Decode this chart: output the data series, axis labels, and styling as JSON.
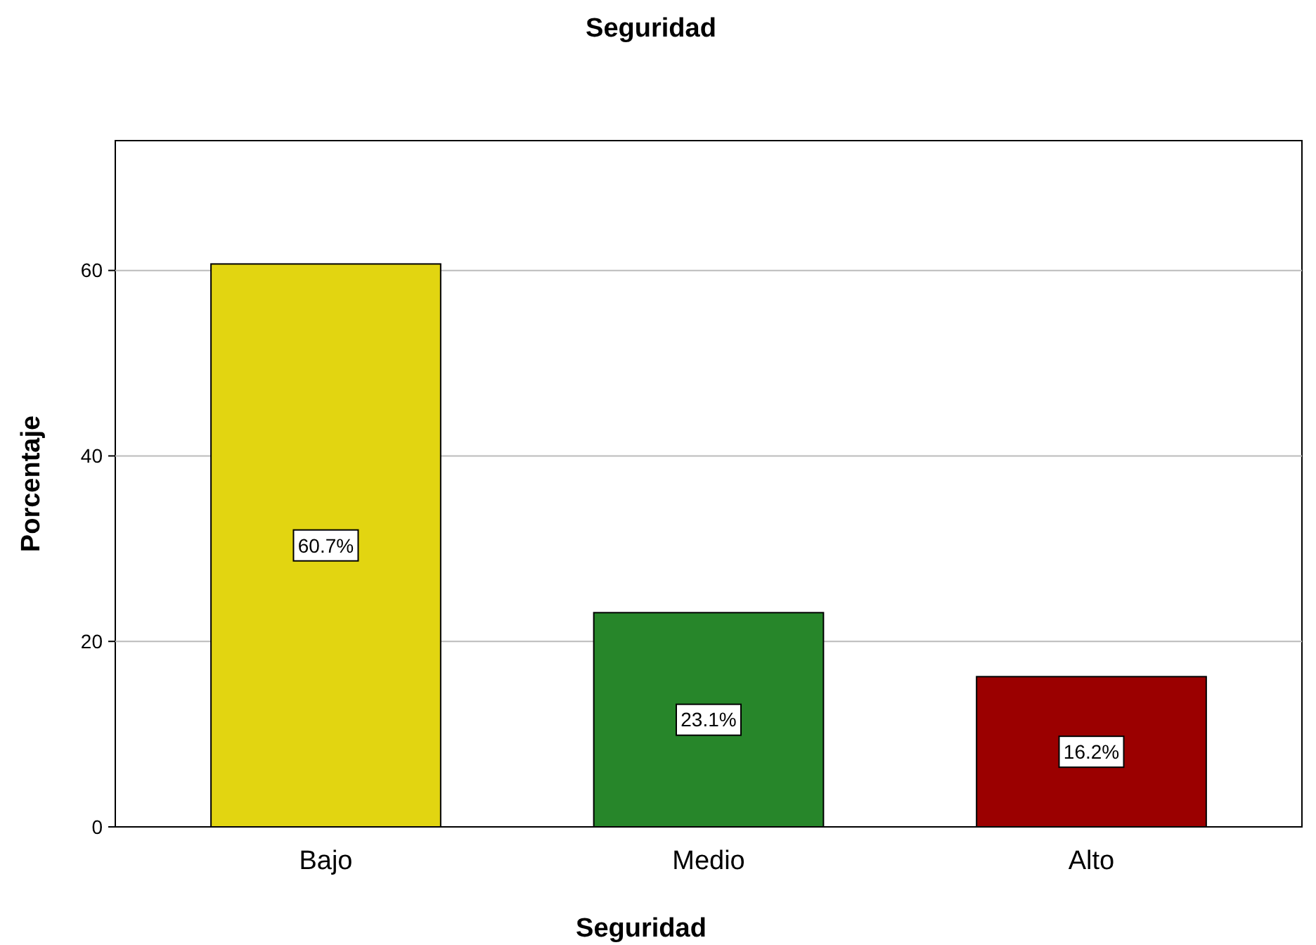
{
  "chart_data": {
    "type": "bar",
    "title": "Seguridad",
    "xlabel": "Seguridad",
    "ylabel": "Porcentaje",
    "categories": [
      "Bajo",
      "Medio",
      "Alto"
    ],
    "values": [
      60.7,
      23.1,
      16.2
    ],
    "colors": [
      "#e2d511",
      "#27862a",
      "#9b0000"
    ],
    "value_labels": [
      "60.7%",
      "23.1%",
      "16.2%"
    ],
    "ylim": [
      0,
      74
    ],
    "yticks": [
      0,
      20,
      40,
      60
    ],
    "grid": "y"
  }
}
